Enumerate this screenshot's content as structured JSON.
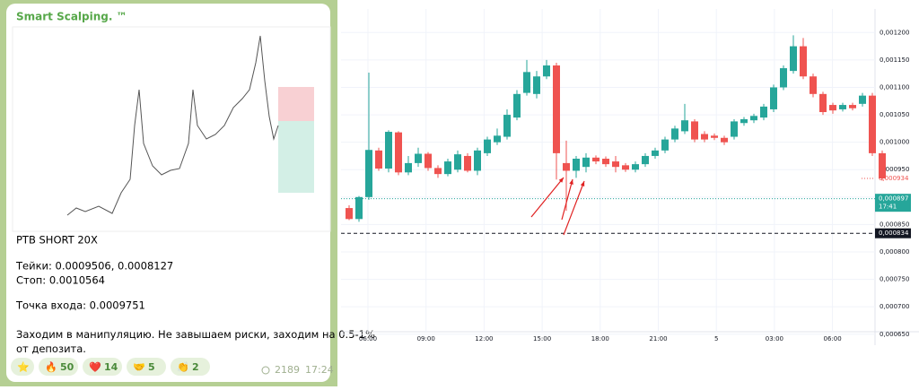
{
  "post": {
    "channel": "Smart Scalping. ™",
    "lines": [
      "PTB SHORT 20X",
      "Тейки: 0.0009506, 0.0008127",
      "Стоп: 0.0010564",
      "Точка входа: 0.0009751",
      "Заходим в манипуляцию. Не завышаем риски, заходим на 0.5-1% от депозита."
    ],
    "reactions": [
      {
        "emoji": "⭐"
      },
      {
        "emoji": "🔥",
        "count": 50
      },
      {
        "emoji": "❤️",
        "count": 14
      },
      {
        "emoji": "🤝",
        "count": 5
      },
      {
        "emoji": "👏",
        "count": 2
      }
    ],
    "views": 2189,
    "time": "17:24"
  },
  "chart": {
    "type": "candlestick",
    "up_color": "#26a69a",
    "down_color": "#ef5350",
    "ylim": [
      0.00063,
      0.001243
    ],
    "yticks": [
      {
        "value": 0.0012,
        "label": "0,001200"
      },
      {
        "value": 0.00115,
        "label": "0,001150"
      },
      {
        "value": 0.0011,
        "label": "0,001100"
      },
      {
        "value": 0.00105,
        "label": "0,001050"
      },
      {
        "value": 0.001,
        "label": "0,001000"
      },
      {
        "value": 0.00095,
        "label": "0,000950"
      },
      {
        "value": 0.0009,
        "label": "0,000900"
      },
      {
        "value": 0.00085,
        "label": "0,000850"
      },
      {
        "value": 0.0008,
        "label": "0,000800"
      },
      {
        "value": 0.00075,
        "label": "0,000750"
      },
      {
        "value": 0.0007,
        "label": "0,000700"
      },
      {
        "value": 0.00065,
        "label": "0,000650"
      }
    ],
    "xlabels": [
      "06:00",
      "09:00",
      "12:00",
      "15:00",
      "18:00",
      "21:00",
      "5",
      "03:00",
      "06:00"
    ],
    "candles": [
      {
        "open": 0.00088,
        "high": 0.000885,
        "low": 0.000858,
        "close": 0.00086
      },
      {
        "open": 0.00086,
        "high": 0.000902,
        "low": 0.000855,
        "close": 0.0009
      },
      {
        "open": 0.0009,
        "high": 0.001127,
        "low": 0.000895,
        "close": 0.000986
      },
      {
        "open": 0.000985,
        "high": 0.00099,
        "low": 0.000948,
        "close": 0.000952
      },
      {
        "open": 0.000952,
        "high": 0.001022,
        "low": 0.000945,
        "close": 0.001019
      },
      {
        "open": 0.001018,
        "high": 0.00102,
        "low": 0.00094,
        "close": 0.000945
      },
      {
        "open": 0.000945,
        "high": 0.000975,
        "low": 0.00094,
        "close": 0.000962
      },
      {
        "open": 0.000962,
        "high": 0.00099,
        "low": 0.000955,
        "close": 0.000979
      },
      {
        "open": 0.000979,
        "high": 0.000982,
        "low": 0.000948,
        "close": 0.000953
      },
      {
        "open": 0.000953,
        "high": 0.000958,
        "low": 0.000935,
        "close": 0.000942
      },
      {
        "open": 0.000942,
        "high": 0.00097,
        "low": 0.000938,
        "close": 0.000965
      },
      {
        "open": 0.00095,
        "high": 0.000985,
        "low": 0.000945,
        "close": 0.000978
      },
      {
        "open": 0.000975,
        "high": 0.00098,
        "low": 0.000945,
        "close": 0.000948
      },
      {
        "open": 0.000948,
        "high": 0.00099,
        "low": 0.00094,
        "close": 0.000985
      },
      {
        "open": 0.00098,
        "high": 0.00101,
        "low": 0.000975,
        "close": 0.001005
      },
      {
        "open": 0.001,
        "high": 0.001025,
        "low": 0.000995,
        "close": 0.001012
      },
      {
        "open": 0.00101,
        "high": 0.00106,
        "low": 0.001005,
        "close": 0.00105
      },
      {
        "open": 0.001045,
        "high": 0.001095,
        "low": 0.00104,
        "close": 0.001088
      },
      {
        "open": 0.00109,
        "high": 0.00115,
        "low": 0.001085,
        "close": 0.001128
      },
      {
        "open": 0.001088,
        "high": 0.00113,
        "low": 0.00108,
        "close": 0.00112
      },
      {
        "open": 0.00112,
        "high": 0.00115,
        "low": 0.001115,
        "close": 0.00114
      },
      {
        "open": 0.00114,
        "high": 0.001145,
        "low": 0.000932,
        "close": 0.00098
      },
      {
        "open": 0.000962,
        "high": 0.001003,
        "low": 0.000875,
        "close": 0.000948
      },
      {
        "open": 0.000948,
        "high": 0.000975,
        "low": 0.000935,
        "close": 0.00097
      },
      {
        "open": 0.000955,
        "high": 0.00098,
        "low": 0.000945,
        "close": 0.000972
      },
      {
        "open": 0.000972,
        "high": 0.000976,
        "low": 0.00096,
        "close": 0.000965
      },
      {
        "open": 0.00097,
        "high": 0.000974,
        "low": 0.000955,
        "close": 0.00096
      },
      {
        "open": 0.000965,
        "high": 0.000975,
        "low": 0.000945,
        "close": 0.000955
      },
      {
        "open": 0.000958,
        "high": 0.000962,
        "low": 0.000946,
        "close": 0.00095
      },
      {
        "open": 0.00095,
        "high": 0.000965,
        "low": 0.000945,
        "close": 0.00096
      },
      {
        "open": 0.00096,
        "high": 0.00098,
        "low": 0.000955,
        "close": 0.000975
      },
      {
        "open": 0.000975,
        "high": 0.00099,
        "low": 0.00097,
        "close": 0.000985
      },
      {
        "open": 0.000985,
        "high": 0.00101,
        "low": 0.00098,
        "close": 0.001005
      },
      {
        "open": 0.001005,
        "high": 0.00103,
        "low": 0.001,
        "close": 0.001025
      },
      {
        "open": 0.00102,
        "high": 0.00107,
        "low": 0.001015,
        "close": 0.00104
      },
      {
        "open": 0.001038,
        "high": 0.001042,
        "low": 0.001,
        "close": 0.001005
      },
      {
        "open": 0.001015,
        "high": 0.00102,
        "low": 0.001,
        "close": 0.001005
      },
      {
        "open": 0.001012,
        "high": 0.001016,
        "low": 0.001004,
        "close": 0.001008
      },
      {
        "open": 0.001008,
        "high": 0.001012,
        "low": 0.000995,
        "close": 0.001
      },
      {
        "open": 0.00101,
        "high": 0.001042,
        "low": 0.001005,
        "close": 0.001038
      },
      {
        "open": 0.001035,
        "high": 0.001046,
        "low": 0.00103,
        "close": 0.001042
      },
      {
        "open": 0.00104,
        "high": 0.001052,
        "low": 0.001035,
        "close": 0.001048
      },
      {
        "open": 0.001045,
        "high": 0.00107,
        "low": 0.00104,
        "close": 0.001065
      },
      {
        "open": 0.00106,
        "high": 0.001105,
        "low": 0.001055,
        "close": 0.0011
      },
      {
        "open": 0.0011,
        "high": 0.00114,
        "low": 0.001095,
        "close": 0.001135
      },
      {
        "open": 0.00113,
        "high": 0.001195,
        "low": 0.001125,
        "close": 0.001175
      },
      {
        "open": 0.001175,
        "high": 0.00119,
        "low": 0.001115,
        "close": 0.00112
      },
      {
        "open": 0.00112,
        "high": 0.001125,
        "low": 0.001082,
        "close": 0.001088
      },
      {
        "open": 0.001088,
        "high": 0.001092,
        "low": 0.00105,
        "close": 0.001055
      },
      {
        "open": 0.001068,
        "high": 0.001072,
        "low": 0.001052,
        "close": 0.001058
      },
      {
        "open": 0.00106,
        "high": 0.001072,
        "low": 0.001056,
        "close": 0.001068
      },
      {
        "open": 0.001068,
        "high": 0.001072,
        "low": 0.001058,
        "close": 0.001062
      },
      {
        "open": 0.00107,
        "high": 0.00109,
        "low": 0.001065,
        "close": 0.001085
      },
      {
        "open": 0.001085,
        "high": 0.00109,
        "low": 0.000975,
        "close": 0.00098
      },
      {
        "open": 0.00098,
        "high": 0.000985,
        "low": 0.00093,
        "close": 0.000934
      }
    ],
    "last_price": {
      "value": 0.000934,
      "label": "0,000934"
    },
    "price_lines": [
      {
        "value": 0.000897,
        "label": "0,000897",
        "sub": "17:41",
        "color": "#26a69a"
      },
      {
        "value": 0.000834,
        "label": "0,000834",
        "color": "#131722"
      }
    ]
  }
}
